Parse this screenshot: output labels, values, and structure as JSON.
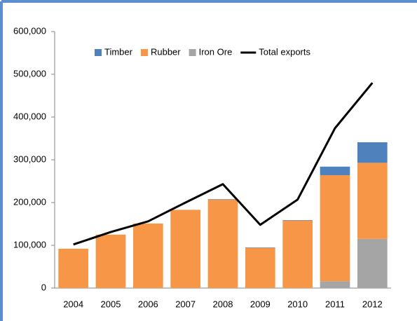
{
  "chart_data": {
    "type": "bar",
    "stacked": true,
    "categories": [
      "2004",
      "2005",
      "2006",
      "2007",
      "2008",
      "2009",
      "2010",
      "2011",
      "2012"
    ],
    "series": [
      {
        "name": "Timber",
        "color": "#4f81bd",
        "values": [
          0,
          0,
          0,
          0,
          1000,
          1000,
          1000,
          20000,
          48000
        ]
      },
      {
        "name": "Rubber",
        "color": "#f79646",
        "values": [
          92000,
          125000,
          151000,
          183000,
          207000,
          94000,
          158000,
          248000,
          178000
        ]
      },
      {
        "name": "Iron Ore",
        "color": "#a5a5a5",
        "values": [
          0,
          0,
          0,
          0,
          0,
          0,
          0,
          16000,
          115000
        ]
      },
      {
        "name": "Total exports",
        "type": "line",
        "color": "#000000",
        "values": [
          102000,
          131000,
          156000,
          200000,
          243000,
          148000,
          207000,
          374000,
          480000
        ]
      }
    ],
    "ylim": [
      0,
      600000
    ],
    "yticks": [
      0,
      {
        "value": 100000,
        "label": "100,000"
      },
      {
        "value": 200000,
        "label": "200,000"
      },
      {
        "value": 300000,
        "label": "300,000"
      },
      {
        "value": 400000,
        "label": "400,000"
      },
      {
        "value": 500000,
        "label": "500,000"
      },
      {
        "value": 600000,
        "label": "600,000"
      }
    ],
    "legend": "top",
    "grid": false
  }
}
